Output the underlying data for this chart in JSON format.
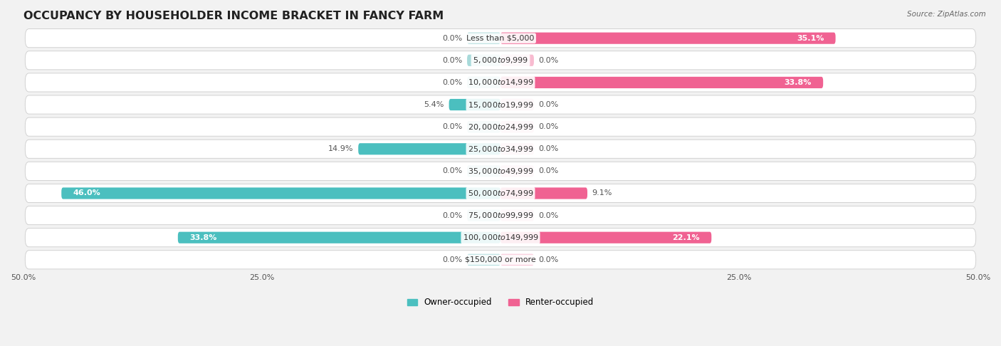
{
  "title": "OCCUPANCY BY HOUSEHOLDER INCOME BRACKET IN FANCY FARM",
  "source": "Source: ZipAtlas.com",
  "categories": [
    "Less than $5,000",
    "$5,000 to $9,999",
    "$10,000 to $14,999",
    "$15,000 to $19,999",
    "$20,000 to $24,999",
    "$25,000 to $34,999",
    "$35,000 to $49,999",
    "$50,000 to $74,999",
    "$75,000 to $99,999",
    "$100,000 to $149,999",
    "$150,000 or more"
  ],
  "owner_values": [
    0.0,
    0.0,
    0.0,
    5.4,
    0.0,
    14.9,
    0.0,
    46.0,
    0.0,
    33.8,
    0.0
  ],
  "renter_values": [
    35.1,
    0.0,
    33.8,
    0.0,
    0.0,
    0.0,
    0.0,
    9.1,
    0.0,
    22.1,
    0.0
  ],
  "owner_color": "#4bbfbf",
  "renter_color": "#f06292",
  "owner_color_light": "#a8dada",
  "renter_color_light": "#f8bbd0",
  "bar_height": 0.52,
  "xlim": 50.0,
  "bg_color": "#f2f2f2",
  "row_bg_color": "#ffffff",
  "row_edge_color": "#dddddd",
  "title_fontsize": 11.5,
  "label_fontsize": 8,
  "category_fontsize": 8,
  "legend_fontsize": 8.5,
  "source_fontsize": 7.5,
  "tick_fontsize": 8
}
